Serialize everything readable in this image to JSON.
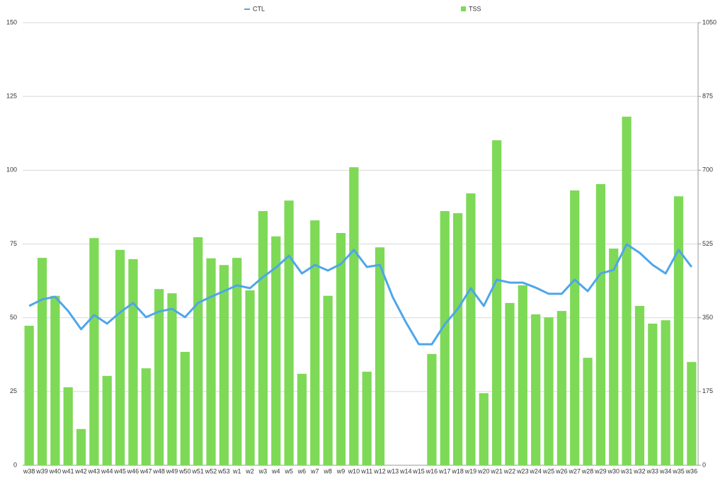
{
  "chart_data": {
    "type": "bar",
    "categories": [
      "w38",
      "w39",
      "w40",
      "w41",
      "w42",
      "w43",
      "w44",
      "w45",
      "w46",
      "w47",
      "w48",
      "w49",
      "w50",
      "w51",
      "w52",
      "w53",
      "w1",
      "w2",
      "w3",
      "w4",
      "w5",
      "w6",
      "w7",
      "w8",
      "w9",
      "w10",
      "w11",
      "w12",
      "w13",
      "w14",
      "w15",
      "w16",
      "w17",
      "w18",
      "w19",
      "w20",
      "w21",
      "w22",
      "w23",
      "w24",
      "w25",
      "w26",
      "w27",
      "w28",
      "w29",
      "w30",
      "w31",
      "w32",
      "w33",
      "w34",
      "w35",
      "w36"
    ],
    "series": [
      {
        "name": "CTL",
        "type": "line",
        "color": "#4ea6ea",
        "values": [
          54,
          56.2,
          57.1,
          52.3,
          46.1,
          50.9,
          48,
          51.8,
          55,
          50.2,
          52.1,
          53,
          50.2,
          55,
          57.1,
          59,
          61,
          60,
          63.8,
          67,
          71,
          65,
          67.9,
          66,
          68.2,
          73,
          67.2,
          67.9,
          56.9,
          48.5,
          41,
          41,
          47.8,
          53,
          60,
          54,
          62.9,
          61.9,
          61.9,
          60.2,
          58.1,
          58.1,
          62.9,
          59,
          65,
          66.2,
          74.9,
          72,
          67.9,
          65,
          73,
          67.2
        ]
      },
      {
        "name": "TSS",
        "type": "bar",
        "axis": "y2",
        "color": "#7ed957",
        "values": [
          331,
          492,
          402,
          185,
          86,
          539,
          212,
          511,
          489,
          230,
          418,
          408,
          269,
          541,
          491,
          475,
          492,
          415,
          603,
          543,
          628,
          217,
          581,
          402,
          551,
          707,
          222,
          517,
          null,
          null,
          null,
          264,
          603,
          598,
          645,
          171,
          771,
          385,
          427,
          358,
          351,
          366,
          652,
          255,
          667,
          514,
          827,
          378,
          336,
          344,
          638,
          245
        ]
      }
    ],
    "ylim": [
      0,
      150
    ],
    "yticks": [
      0,
      25,
      50,
      75,
      100,
      125,
      150
    ],
    "y2lim": [
      0,
      1050
    ],
    "y2ticks": [
      0,
      175,
      350,
      525,
      700,
      875,
      1050
    ],
    "grid": true,
    "legend": "top"
  }
}
